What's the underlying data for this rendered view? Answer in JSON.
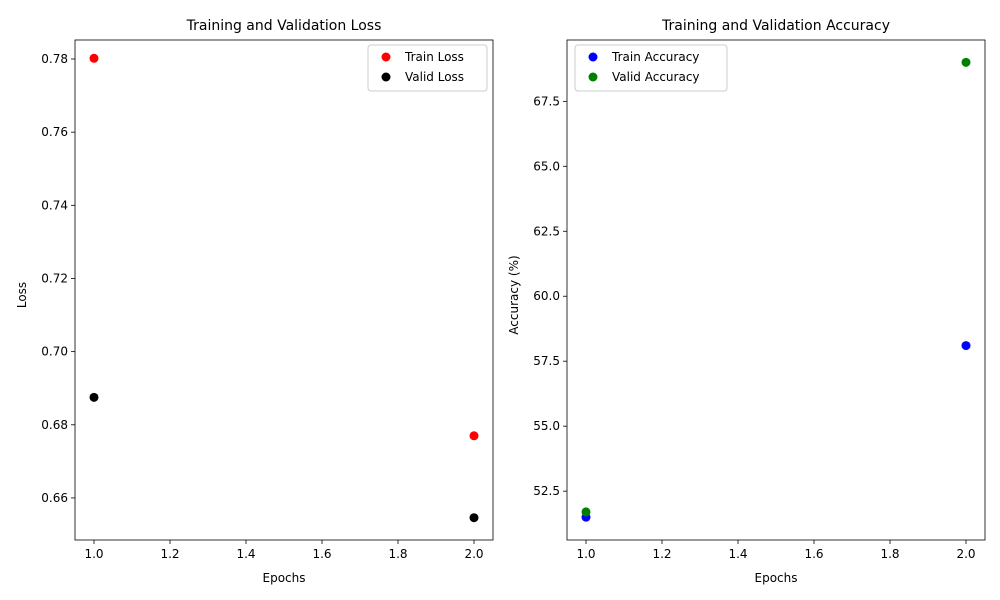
{
  "chart_data": [
    {
      "type": "scatter",
      "title": "Training and Validation Loss",
      "xlabel": "Epochs",
      "ylabel": "Loss",
      "xlim": [
        0.95,
        2.05
      ],
      "ylim": [
        0.6485,
        0.7852
      ],
      "xticks": [
        "1.0",
        "1.2",
        "1.4",
        "1.6",
        "1.8",
        "2.0"
      ],
      "yticks": [
        "0.66",
        "0.68",
        "0.70",
        "0.72",
        "0.74",
        "0.76",
        "0.78"
      ],
      "grid": false,
      "legend_position": "upper right",
      "series": [
        {
          "name": "Train Loss",
          "color": "#ff0000",
          "x": [
            1.0,
            2.0
          ],
          "y": [
            0.7802,
            0.677
          ]
        },
        {
          "name": "Valid Loss",
          "color": "#000000",
          "x": [
            1.0,
            2.0
          ],
          "y": [
            0.6875,
            0.6546
          ]
        }
      ]
    },
    {
      "type": "scatter",
      "title": "Training and Validation Accuracy",
      "xlabel": "Epochs",
      "ylabel": "Accuracy (%)",
      "xlim": [
        0.95,
        2.05
      ],
      "ylim": [
        50.62,
        69.86
      ],
      "xticks": [
        "1.0",
        "1.2",
        "1.4",
        "1.6",
        "1.8",
        "2.0"
      ],
      "yticks": [
        "52.5",
        "55.0",
        "57.5",
        "60.0",
        "62.5",
        "65.0",
        "67.5"
      ],
      "grid": false,
      "legend_position": "upper left",
      "series": [
        {
          "name": "Train Accuracy",
          "color": "#0000ff",
          "x": [
            1.0,
            2.0
          ],
          "y": [
            51.5,
            58.1
          ]
        },
        {
          "name": "Valid Accuracy",
          "color": "#008000",
          "x": [
            1.0,
            2.0
          ],
          "y": [
            51.7,
            69.0
          ]
        }
      ]
    }
  ]
}
